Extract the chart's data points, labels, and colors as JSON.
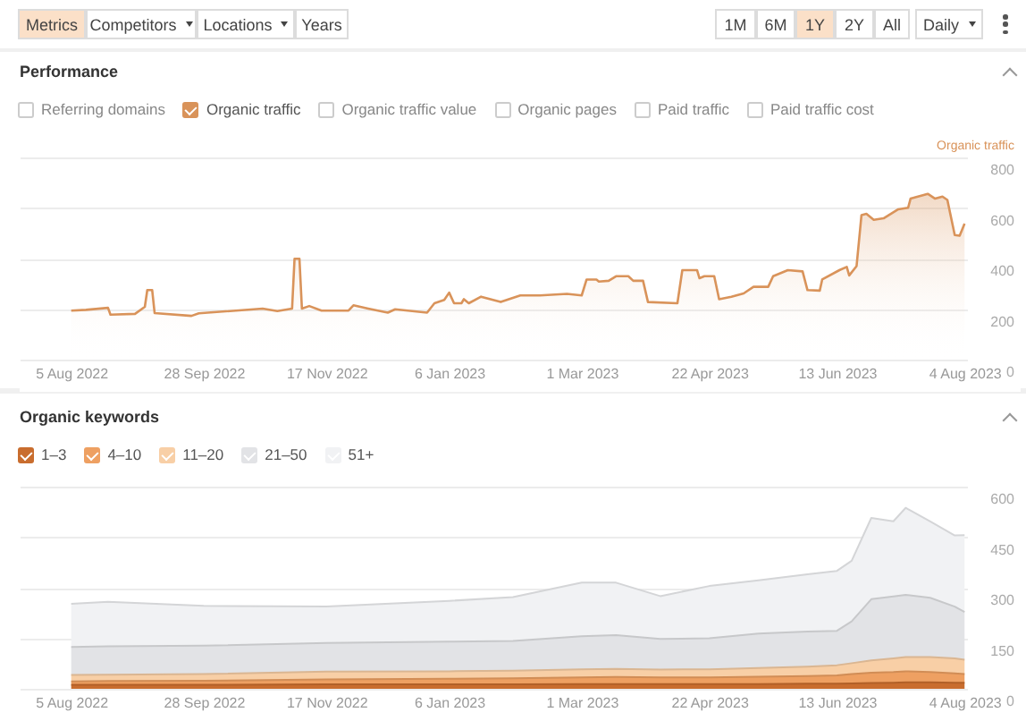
{
  "chart_data": [
    {
      "type": "other",
      "annotations": [
        "Metrics",
        "Competitors",
        "Locations",
        "Years",
        "1M",
        "6M",
        "1Y",
        "2Y",
        "All",
        "Daily"
      ]
    },
    {
      "type": "area",
      "title": "Performance",
      "ylabel": "Organic traffic",
      "annotations": [
        "Referring domains",
        "Organic traffic value",
        "Organic pages",
        "Paid traffic",
        "Paid traffic cost"
      ],
      "legend": "top left",
      "grid": "y",
      "xlim": [
        "2022-07-15",
        "2023-08-05"
      ],
      "ylim": [
        0,
        800
      ],
      "yticks": [
        0,
        200,
        400,
        600,
        800
      ],
      "xticks": [
        {
          "value": "2022-08-05",
          "label": "5 Aug 2022"
        },
        {
          "value": "2022-09-28",
          "label": "28 Sep 2022"
        },
        {
          "value": "2022-11-17",
          "label": "17 Nov 2022"
        },
        {
          "value": "2023-01-06",
          "label": "6 Jan 2023"
        },
        {
          "value": "2023-03-01",
          "label": "1 Mar 2023"
        },
        {
          "value": "2023-04-22",
          "label": "22 Apr 2023"
        },
        {
          "value": "2023-06-13",
          "label": "13 Jun 2023"
        },
        {
          "value": "2023-08-04",
          "label": "4 Aug 2023"
        }
      ],
      "x": [
        "2022-08-05",
        "2022-08-11",
        "2022-08-20",
        "2022-08-21",
        "2022-08-31",
        "2022-09-04",
        "2022-09-05",
        "2022-09-07",
        "2022-09-08",
        "2022-09-23",
        "2022-09-26",
        "2022-10-22",
        "2022-10-28",
        "2022-11-03",
        "2022-11-04",
        "2022-11-06",
        "2022-11-07",
        "2022-11-10",
        "2022-11-15",
        "2022-11-26",
        "2022-11-28",
        "2022-12-04",
        "2022-12-12",
        "2022-12-15",
        "2022-12-28",
        "2022-12-31",
        "2023-01-04",
        "2023-01-06",
        "2023-01-08",
        "2023-01-11",
        "2023-01-12",
        "2023-01-14",
        "2023-01-19",
        "2023-01-27",
        "2023-02-04",
        "2023-02-12",
        "2023-02-23",
        "2023-03-01",
        "2023-03-03",
        "2023-03-07",
        "2023-03-08",
        "2023-03-12",
        "2023-03-15",
        "2023-03-20",
        "2023-03-22",
        "2023-03-26",
        "2023-03-28",
        "2023-04-09",
        "2023-04-11",
        "2023-04-17",
        "2023-04-18",
        "2023-04-20",
        "2023-04-24",
        "2023-04-26",
        "2023-05-01",
        "2023-05-06",
        "2023-05-10",
        "2023-05-16",
        "2023-05-18",
        "2023-05-24",
        "2023-05-30",
        "2023-06-01",
        "2023-06-06",
        "2023-06-07",
        "2023-06-14",
        "2023-06-17",
        "2023-06-18",
        "2023-06-21",
        "2023-06-23",
        "2023-06-25",
        "2023-06-28",
        "2023-07-02",
        "2023-07-08",
        "2023-07-12",
        "2023-07-13",
        "2023-07-20",
        "2023-07-23",
        "2023-07-26",
        "2023-07-28",
        "2023-07-31",
        "2023-08-02",
        "2023-08-04"
      ],
      "series": [
        {
          "name": "Organic traffic",
          "color": "#d9935a",
          "values": [
            194,
            197,
            205,
            178,
            181,
            209,
            275,
            275,
            184,
            173,
            183,
            202,
            192,
            202,
            399,
            399,
            202,
            212,
            194,
            194,
            215,
            202,
            186,
            199,
            186,
            223,
            236,
            265,
            223,
            223,
            239,
            223,
            249,
            228,
            254,
            254,
            260,
            254,
            317,
            317,
            309,
            312,
            330,
            330,
            312,
            312,
            228,
            223,
            354,
            354,
            322,
            330,
            330,
            239,
            249,
            262,
            288,
            288,
            330,
            354,
            349,
            275,
            273,
            317,
            354,
            367,
            333,
            370,
            572,
            577,
            553,
            559,
            595,
            601,
            637,
            656,
            637,
            645,
            632,
            493,
            490,
            538
          ]
        }
      ]
    },
    {
      "type": "area",
      "stacked": true,
      "title": "Organic keywords",
      "legend": "top left",
      "grid": "y",
      "xlim": [
        "2022-07-15",
        "2023-08-05"
      ],
      "ylim": [
        0,
        600
      ],
      "yticks": [
        0,
        150,
        300,
        450,
        600
      ],
      "xticks": [
        {
          "value": "2022-08-05",
          "label": "5 Aug 2022"
        },
        {
          "value": "2022-09-28",
          "label": "28 Sep 2022"
        },
        {
          "value": "2022-11-17",
          "label": "17 Nov 2022"
        },
        {
          "value": "2023-01-06",
          "label": "6 Jan 2023"
        },
        {
          "value": "2023-03-01",
          "label": "1 Mar 2023"
        },
        {
          "value": "2023-04-22",
          "label": "22 Apr 2023"
        },
        {
          "value": "2023-06-13",
          "label": "13 Jun 2023"
        },
        {
          "value": "2023-08-04",
          "label": "4 Aug 2023"
        }
      ],
      "x": [
        "2022-08-05",
        "2022-08-20",
        "2022-09-28",
        "2022-11-17",
        "2023-01-06",
        "2023-02-01",
        "2023-03-01",
        "2023-03-15",
        "2023-04-02",
        "2023-04-22",
        "2023-05-12",
        "2023-06-01",
        "2023-06-13",
        "2023-06-19",
        "2023-06-27",
        "2023-07-06",
        "2023-07-11",
        "2023-07-21",
        "2023-07-31",
        "2023-08-04"
      ],
      "series": [
        {
          "name": "1–3",
          "color": "#c96d2e",
          "values": [
            12,
            12,
            12,
            13,
            13,
            13,
            14,
            14,
            14,
            14,
            14,
            15,
            15,
            16,
            17,
            18,
            19,
            19,
            18,
            18
          ]
        },
        {
          "name": "4–10",
          "color": "#eea062",
          "values": [
            10,
            11,
            12,
            15,
            17,
            18,
            20,
            21,
            20,
            20,
            22,
            23,
            25,
            28,
            31,
            32,
            33,
            31,
            28,
            26
          ]
        },
        {
          "name": "11–20",
          "color": "#f8cfa6",
          "values": [
            19,
            19,
            20,
            23,
            22,
            23,
            24,
            24,
            23,
            24,
            26,
            28,
            30,
            32,
            36,
            40,
            42,
            44,
            44,
            42
          ]
        },
        {
          "name": "21–50",
          "color": "#e2e3e6",
          "values": [
            83,
            84,
            84,
            85,
            88,
            88,
            98,
            100,
            91,
            92,
            102,
            104,
            102,
            124,
            182,
            184,
            185,
            176,
            154,
            142
          ]
        },
        {
          "name": "51+",
          "color": "#f1f2f4",
          "values": [
            128,
            132,
            118,
            108,
            121,
            130,
            159,
            156,
            127,
            155,
            158,
            170,
            178,
            180,
            241,
            223,
            258,
            227,
            211,
            228
          ]
        }
      ]
    }
  ]
}
